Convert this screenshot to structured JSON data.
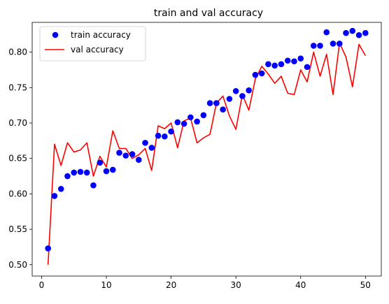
{
  "chart_data": {
    "type": "line",
    "title": "train and val accuracy",
    "xlabel": "",
    "ylabel": "",
    "xlim": [
      -1.45,
      52.45
    ],
    "ylim": [
      0.484,
      0.842
    ],
    "x_ticks": [
      0,
      10,
      20,
      30,
      40,
      50
    ],
    "y_ticks": [
      0.5,
      0.55,
      0.6,
      0.65,
      0.7,
      0.75,
      0.8
    ],
    "x_tick_labels": [
      "0",
      "10",
      "20",
      "30",
      "40",
      "50"
    ],
    "y_tick_labels": [
      "0.50",
      "0.55",
      "0.60",
      "0.65",
      "0.70",
      "0.75",
      "0.80"
    ],
    "grid": false,
    "legend_position": "top-left",
    "x": [
      1,
      2,
      3,
      4,
      5,
      6,
      7,
      8,
      9,
      10,
      11,
      12,
      13,
      14,
      15,
      16,
      17,
      18,
      19,
      20,
      21,
      22,
      23,
      24,
      25,
      26,
      27,
      28,
      29,
      30,
      31,
      32,
      33,
      34,
      35,
      36,
      37,
      38,
      39,
      40,
      41,
      42,
      43,
      44,
      45,
      46,
      47,
      48,
      49,
      50
    ],
    "series": [
      {
        "name": "train accuracy",
        "style": "markers",
        "color": "#0000ff",
        "values": [
          0.523,
          0.597,
          0.607,
          0.625,
          0.63,
          0.631,
          0.63,
          0.612,
          0.644,
          0.632,
          0.634,
          0.658,
          0.654,
          0.656,
          0.648,
          0.672,
          0.665,
          0.682,
          0.681,
          0.688,
          0.701,
          0.699,
          0.708,
          0.702,
          0.711,
          0.728,
          0.728,
          0.719,
          0.734,
          0.745,
          0.738,
          0.746,
          0.768,
          0.77,
          0.783,
          0.781,
          0.783,
          0.788,
          0.787,
          0.791,
          0.779,
          0.809,
          0.809,
          0.828,
          0.812,
          0.812,
          0.827,
          0.83,
          0.824,
          0.827
        ]
      },
      {
        "name": "val accuracy",
        "style": "line",
        "color": "#ff0000",
        "values": [
          0.5,
          0.67,
          0.64,
          0.672,
          0.659,
          0.662,
          0.672,
          0.625,
          0.653,
          0.638,
          0.689,
          0.664,
          0.664,
          0.65,
          0.655,
          0.664,
          0.633,
          0.696,
          0.692,
          0.7,
          0.665,
          0.703,
          0.707,
          0.672,
          0.679,
          0.684,
          0.728,
          0.738,
          0.71,
          0.691,
          0.74,
          0.718,
          0.762,
          0.78,
          0.769,
          0.756,
          0.766,
          0.742,
          0.74,
          0.775,
          0.758,
          0.8,
          0.766,
          0.797,
          0.74,
          0.813,
          0.793,
          0.751,
          0.811,
          0.795
        ]
      }
    ]
  }
}
